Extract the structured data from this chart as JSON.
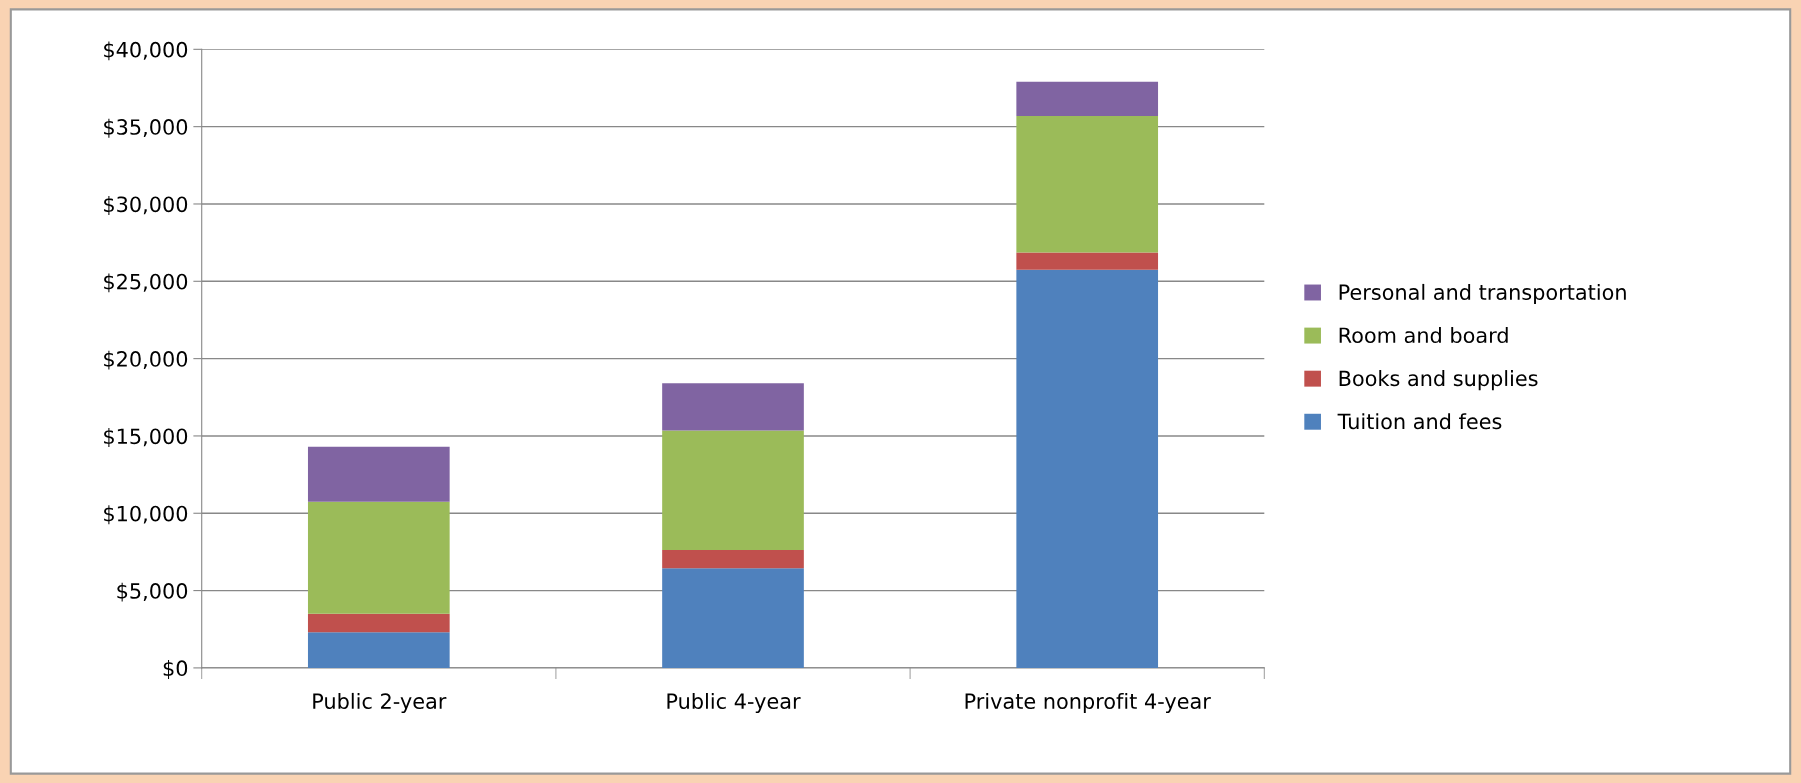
{
  "chart_data": {
    "type": "bar",
    "stacked": true,
    "categories": [
      "Public 2-year",
      "Public 4-year",
      "Private nonprofit 4-year"
    ],
    "series": [
      {
        "name": "Tuition and fees",
        "color": "#4f81bd",
        "values": [
          2300,
          6450,
          25750
        ]
      },
      {
        "name": "Books and supplies",
        "color": "#c0504d",
        "values": [
          1200,
          1180,
          1110
        ]
      },
      {
        "name": "Room and board",
        "color": "#9bbb59",
        "values": [
          7250,
          7720,
          8830
        ]
      },
      {
        "name": "Personal and transportation",
        "color": "#8064a2",
        "values": [
          3550,
          3050,
          2220
        ]
      }
    ],
    "ylim": [
      0,
      40000
    ],
    "yticks": [
      {
        "value": 0,
        "label": "$0"
      },
      {
        "value": 5000,
        "label": "$5,000"
      },
      {
        "value": 10000,
        "label": "$10,000"
      },
      {
        "value": 15000,
        "label": "$15,000"
      },
      {
        "value": 20000,
        "label": "$20,000"
      },
      {
        "value": 25000,
        "label": "$25,000"
      },
      {
        "value": 30000,
        "label": "$30,000"
      },
      {
        "value": 35000,
        "label": "$35,000"
      },
      {
        "value": 40000,
        "label": "$40,000"
      }
    ],
    "grid": "y",
    "legend": "right"
  }
}
